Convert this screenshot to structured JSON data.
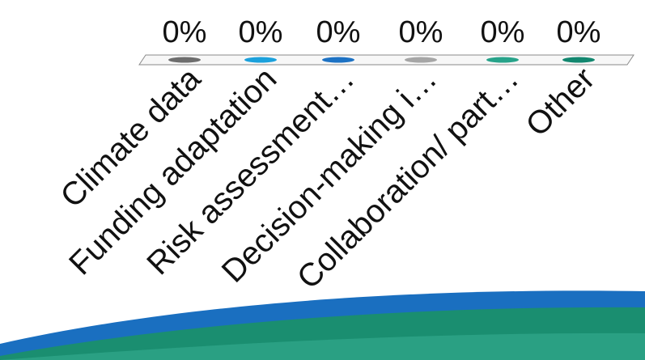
{
  "chart_data": {
    "type": "bar",
    "title": "",
    "xlabel": "",
    "ylabel": "",
    "ylim": [
      0,
      100
    ],
    "categories": [
      "Climate data",
      "Funding adaptation",
      "Risk assessment…",
      "Decision-making i…",
      "Collaboration/ part…",
      "Other"
    ],
    "values": [
      0,
      0,
      0,
      0,
      0,
      0
    ],
    "value_labels": [
      "0%",
      "0%",
      "0%",
      "0%",
      "0%",
      "0%"
    ],
    "colors": [
      "#6d6d6d",
      "#1ba1dc",
      "#1d72c4",
      "#a6a6a6",
      "#27a38a",
      "#12876f"
    ],
    "grid": false,
    "legend": "none"
  },
  "decoration": {
    "wave_colors": [
      "#1a6fc0",
      "#1a8e70",
      "#2aa083"
    ]
  }
}
